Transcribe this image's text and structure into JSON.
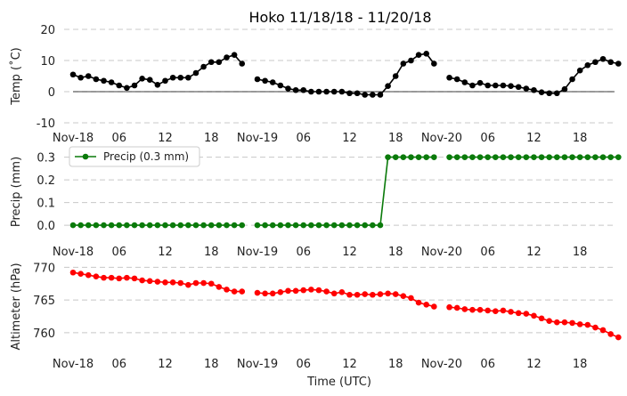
{
  "title": "Hoko 11/18/18 - 11/20/18",
  "xlabel": "Time (UTC)",
  "x_tick_labels": [
    "Nov-18",
    "06",
    "12",
    "18",
    "Nov-19",
    "06",
    "12",
    "18",
    "Nov-20",
    "06",
    "12",
    "18"
  ],
  "x_tick_hours": [
    0,
    6,
    12,
    18,
    24,
    30,
    36,
    42,
    48,
    54,
    60,
    66
  ],
  "xlim_hours": [
    0,
    70.5
  ],
  "chart_data": [
    {
      "type": "line",
      "ylabel": "Temp (˚C)",
      "ylim": [
        -10,
        20
      ],
      "yticks": [
        -10,
        0,
        10,
        20
      ],
      "color": "#000000",
      "zero_line": true,
      "legend": null,
      "x_start": 0,
      "x_step": 1,
      "values": [
        5.5,
        4.5,
        5,
        4,
        3.5,
        3,
        2,
        1.2,
        2,
        4.2,
        3.8,
        2.2,
        3.5,
        4.5,
        4.5,
        4.5,
        6,
        8,
        9.5,
        9.5,
        11,
        11.8,
        9,
        null,
        4,
        3.5,
        3,
        2,
        1,
        0.5,
        0.5,
        0,
        0,
        0,
        0,
        0,
        -0.5,
        -0.5,
        -1,
        -1,
        -1,
        1.8,
        5,
        9,
        10,
        11.8,
        12.2,
        9,
        null,
        4.5,
        4,
        3,
        2,
        2.8,
        2,
        2,
        2,
        1.8,
        1.5,
        1,
        0.5,
        -0.2,
        -0.5,
        -0.5,
        0.8,
        4,
        6.8,
        8.5,
        9.5,
        10.5,
        9.5,
        9
      ]
    },
    {
      "type": "line",
      "ylabel": "Precip (mm)",
      "ylim": [
        -0.035,
        0.33
      ],
      "yticks": [
        0.0,
        0.1,
        0.2,
        0.3
      ],
      "ytick_labels": [
        "0.0",
        "0.1",
        "0.2",
        "0.3"
      ],
      "color": "#0a7a0a",
      "zero_line": false,
      "legend": {
        "label": "Precip (0.3 mm)",
        "position": "top-left"
      },
      "x_start": 0,
      "x_step": 1,
      "values": [
        0,
        0,
        0,
        0,
        0,
        0,
        0,
        0,
        0,
        0,
        0,
        0,
        0,
        0,
        0,
        0,
        0,
        0,
        0,
        0,
        0,
        0,
        0,
        null,
        0,
        0,
        0,
        0,
        0,
        0,
        0,
        0,
        0,
        0,
        0,
        0,
        0,
        0,
        0,
        0,
        0,
        0.3,
        0.3,
        0.3,
        0.3,
        0.3,
        0.3,
        0.3,
        null,
        0.3,
        0.3,
        0.3,
        0.3,
        0.3,
        0.3,
        0.3,
        0.3,
        0.3,
        0.3,
        0.3,
        0.3,
        0.3,
        0.3,
        0.3,
        0.3,
        0.3,
        0.3,
        0.3,
        0.3,
        0.3,
        0.3,
        0.3
      ]
    },
    {
      "type": "line",
      "ylabel": "Altimeter (hPa)",
      "ylim": [
        757,
        771
      ],
      "yticks": [
        760,
        765,
        770
      ],
      "color": "#ff0000",
      "zero_line": false,
      "legend": null,
      "x_start": 0,
      "x_step": 1,
      "values": [
        769.2,
        769.0,
        768.8,
        768.6,
        768.4,
        768.4,
        768.3,
        768.4,
        768.3,
        768.0,
        767.9,
        767.8,
        767.7,
        767.7,
        767.6,
        767.3,
        767.6,
        767.6,
        767.5,
        767.0,
        766.6,
        766.3,
        766.3,
        null,
        766.1,
        766.0,
        766.0,
        766.2,
        766.4,
        766.4,
        766.5,
        766.6,
        766.5,
        766.3,
        766.0,
        766.2,
        765.8,
        765.8,
        765.9,
        765.8,
        765.9,
        766.0,
        765.9,
        765.6,
        765.3,
        764.6,
        764.3,
        764.0,
        null,
        763.9,
        763.8,
        763.6,
        763.5,
        763.5,
        763.4,
        763.3,
        763.4,
        763.2,
        763.0,
        762.9,
        762.6,
        762.2,
        761.8,
        761.6,
        761.6,
        761.5,
        761.3,
        761.2,
        760.8,
        760.4,
        759.8,
        759.3
      ]
    }
  ]
}
